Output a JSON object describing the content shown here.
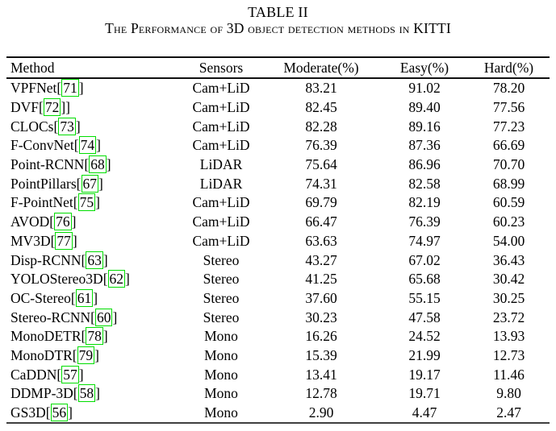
{
  "caption": {
    "number": "TABLE II",
    "title": "The Performance of 3D object detection methods in KITTI"
  },
  "columns": [
    "Method",
    "Sensors",
    "Moderate(%)",
    "Easy(%)",
    "Hard(%)"
  ],
  "rows": [
    {
      "method": "VPFNet[",
      "cite": "71",
      "close": "]",
      "sensors": "Cam+LiD",
      "moderate": "83.21",
      "easy": "91.02",
      "hard": "78.20"
    },
    {
      "method": "DVF[",
      "cite": "72",
      "close": "]]",
      "sensors": "Cam+LiD",
      "moderate": "82.45",
      "easy": "89.40",
      "hard": "77.56"
    },
    {
      "method": "CLOCs[",
      "cite": "73",
      "close": "]",
      "sensors": "Cam+LiD",
      "moderate": "82.28",
      "easy": "89.16",
      "hard": "77.23"
    },
    {
      "method": "F-ConvNet[",
      "cite": "74",
      "close": "]",
      "sensors": "Cam+LiD",
      "moderate": "76.39",
      "easy": "87.36",
      "hard": "66.69"
    },
    {
      "method": "Point-RCNN[",
      "cite": "68",
      "close": "]",
      "sensors": "LiDAR",
      "moderate": "75.64",
      "easy": "86.96",
      "hard": "70.70"
    },
    {
      "method": "PointPillars[",
      "cite": "67",
      "close": "]",
      "sensors": "LiDAR",
      "moderate": "74.31",
      "easy": "82.58",
      "hard": "68.99"
    },
    {
      "method": "F-PointNet[",
      "cite": "75",
      "close": "]",
      "sensors": "Cam+LiD",
      "moderate": "69.79",
      "easy": "82.19",
      "hard": "60.59"
    },
    {
      "method": "AVOD[",
      "cite": "76",
      "close": "]",
      "sensors": "Cam+LiD",
      "moderate": "66.47",
      "easy": "76.39",
      "hard": "60.23"
    },
    {
      "method": "MV3D[",
      "cite": "77",
      "close": "]",
      "sensors": "Cam+LiD",
      "moderate": "63.63",
      "easy": "74.97",
      "hard": "54.00"
    },
    {
      "method": "Disp-RCNN[",
      "cite": "63",
      "close": "]",
      "sensors": "Stereo",
      "moderate": "43.27",
      "easy": "67.02",
      "hard": "36.43"
    },
    {
      "method": "YOLOStereo3D[",
      "cite": "62",
      "close": "]",
      "sensors": "Stereo",
      "moderate": "41.25",
      "easy": "65.68",
      "hard": "30.42"
    },
    {
      "method": "OC-Stereo[",
      "cite": "61",
      "close": "]",
      "sensors": "Stereo",
      "moderate": "37.60",
      "easy": "55.15",
      "hard": "30.25"
    },
    {
      "method": "Stereo-RCNN[",
      "cite": "60",
      "close": "]",
      "sensors": "Stereo",
      "moderate": "30.23",
      "easy": "47.58",
      "hard": "23.72"
    },
    {
      "method": "MonoDETR[",
      "cite": "78",
      "close": "]",
      "sensors": "Mono",
      "moderate": "16.26",
      "easy": "24.52",
      "hard": "13.93"
    },
    {
      "method": "MonoDTR[",
      "cite": "79",
      "close": "]",
      "sensors": "Mono",
      "moderate": "15.39",
      "easy": "21.99",
      "hard": "12.73"
    },
    {
      "method": "CaDDN[",
      "cite": "57",
      "close": "]",
      "sensors": "Mono",
      "moderate": "13.41",
      "easy": "19.17",
      "hard": "11.46"
    },
    {
      "method": "DDMP-3D[",
      "cite": "58",
      "close": "]",
      "sensors": "Mono",
      "moderate": "12.78",
      "easy": "19.71",
      "hard": "9.80"
    },
    {
      "method": "GS3D[",
      "cite": "56",
      "close": "]",
      "sensors": "Mono",
      "moderate": "2.90",
      "easy": "4.47",
      "hard": "2.47"
    }
  ],
  "colors": {
    "citation_box": "#00dd00",
    "text": "#000000",
    "background": "#ffffff"
  }
}
